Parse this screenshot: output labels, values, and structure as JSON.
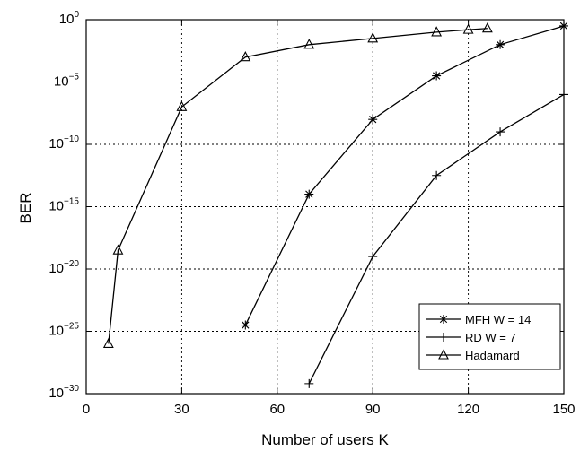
{
  "chart_data": {
    "type": "line",
    "xlabel": "Number of users K",
    "ylabel": "BER",
    "xlim": [
      0,
      150
    ],
    "ylim_exponent": [
      -30,
      0
    ],
    "y_scale": "log10",
    "x_ticks": [
      "0",
      "30",
      "60",
      "90",
      "120",
      "150"
    ],
    "y_ticks": [
      {
        "base": "10",
        "exp": "0",
        "value": 0
      },
      {
        "base": "10",
        "exp": "−5",
        "value": -5
      },
      {
        "base": "10",
        "exp": "−10",
        "value": -10
      },
      {
        "base": "10",
        "exp": "−15",
        "value": -15
      },
      {
        "base": "10",
        "exp": "−20",
        "value": -20
      },
      {
        "base": "10",
        "exp": "−25",
        "value": -25
      },
      {
        "base": "10",
        "exp": "−30",
        "value": -30
      }
    ],
    "grid": true,
    "legend_position": "bottom-right",
    "series": [
      {
        "name": "MFH W = 14",
        "marker": "star",
        "x": [
          50,
          70,
          90,
          110,
          130,
          150
        ],
        "log10_y": [
          -24.5,
          -14.0,
          -8.0,
          -4.5,
          -2.0,
          -0.5
        ]
      },
      {
        "name": "RD W = 7",
        "marker": "plus",
        "x": [
          70,
          90,
          110,
          130,
          150
        ],
        "log10_y": [
          -29.2,
          -19.0,
          -12.5,
          -9.0,
          -6.0
        ]
      },
      {
        "name": "Hadamard",
        "marker": "triangle",
        "x": [
          7,
          10,
          30,
          50,
          70,
          90,
          110,
          120,
          126
        ],
        "log10_y": [
          -26.0,
          -18.5,
          -7.0,
          -3.0,
          -2.0,
          -1.5,
          -1.0,
          -0.8,
          -0.7
        ]
      }
    ]
  }
}
